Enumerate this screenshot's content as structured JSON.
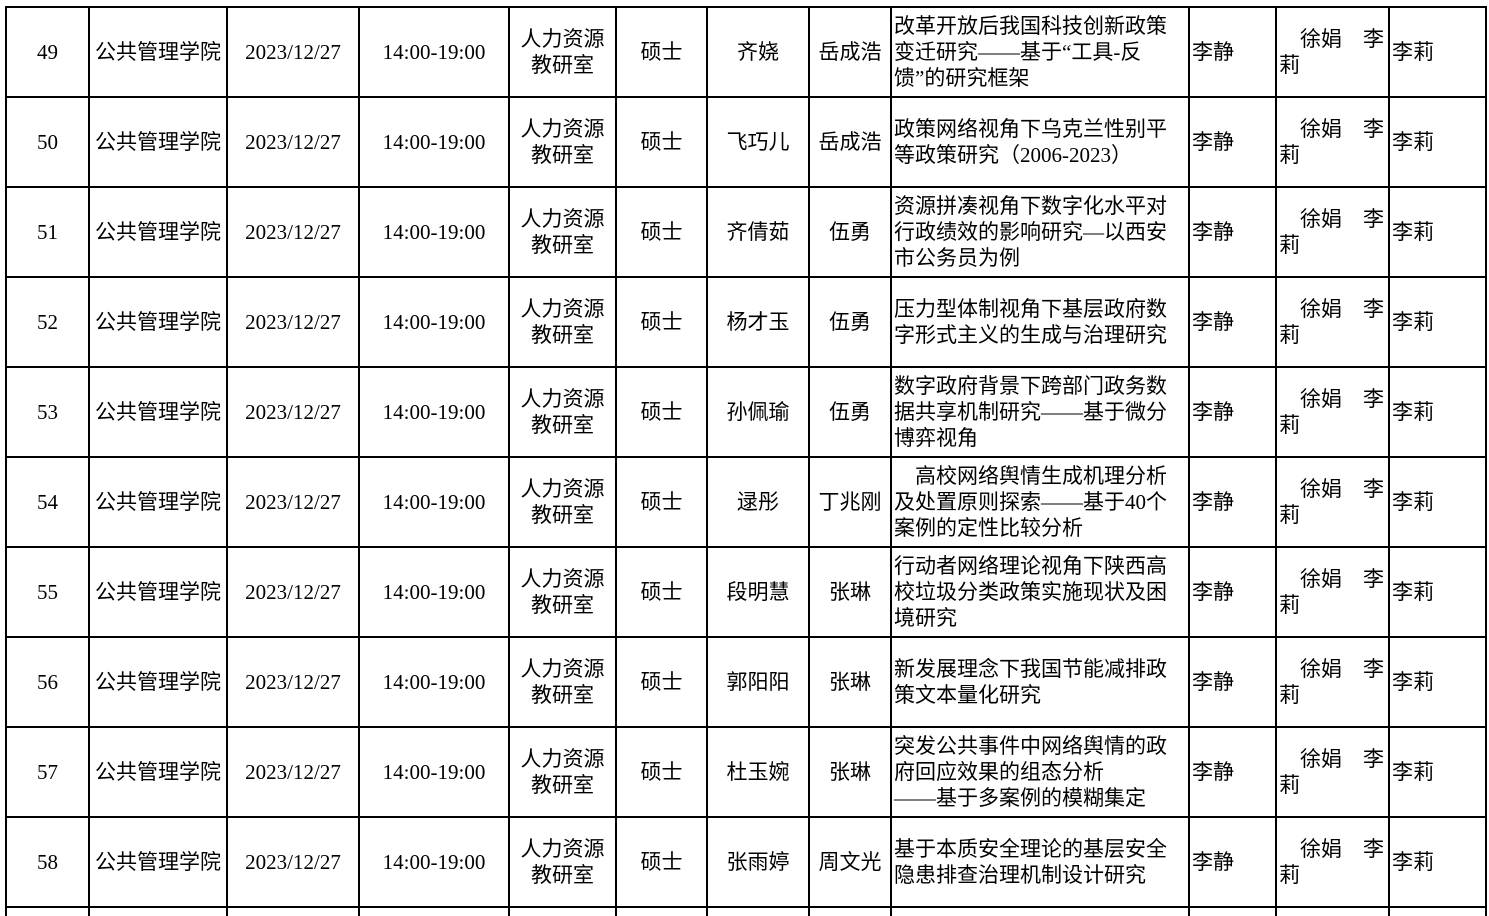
{
  "page": {
    "background_color": "#ffffff",
    "text_color": "#000000",
    "border_color": "#000000",
    "description_language": "zh-CN"
  },
  "table": {
    "rows": [
      {
        "no": "49",
        "college": "公共管理学院",
        "date": "2023/12/27",
        "time": "14:00-19:00",
        "office": "人力资源教研室",
        "degree": "硕士",
        "student": "齐娆",
        "supervisor": "岳成浩",
        "title": "改革开放后我国科技创新政策变迁研究——基于“工具-反馈”的研究框架",
        "member1": "李静",
        "member2": "　徐娟　李\n莉",
        "member3": "李莉"
      },
      {
        "no": "50",
        "college": "公共管理学院",
        "date": "2023/12/27",
        "time": "14:00-19:00",
        "office": "人力资源教研室",
        "degree": "硕士",
        "student": "飞巧儿",
        "supervisor": "岳成浩",
        "title": "政策网络视角下乌克兰性别平等政策研究（2006-2023）",
        "member1": "李静",
        "member2": "　徐娟　李\n莉",
        "member3": "李莉"
      },
      {
        "no": "51",
        "college": "公共管理学院",
        "date": "2023/12/27",
        "time": "14:00-19:00",
        "office": "人力资源教研室",
        "degree": "硕士",
        "student": "齐倩茹",
        "supervisor": "伍勇",
        "title": "资源拼凑视角下数字化水平对行政绩效的影响研究—以西安市公务员为例",
        "member1": "李静",
        "member2": "　徐娟　李\n莉",
        "member3": "李莉"
      },
      {
        "no": "52",
        "college": "公共管理学院",
        "date": "2023/12/27",
        "time": "14:00-19:00",
        "office": "人力资源教研室",
        "degree": "硕士",
        "student": "杨才玉",
        "supervisor": "伍勇",
        "title": "压力型体制视角下基层政府数字形式主义的生成与治理研究",
        "member1": "李静",
        "member2": "　徐娟　李\n莉",
        "member3": "李莉"
      },
      {
        "no": "53",
        "college": "公共管理学院",
        "date": "2023/12/27",
        "time": "14:00-19:00",
        "office": "人力资源教研室",
        "degree": "硕士",
        "student": "孙佩瑜",
        "supervisor": "伍勇",
        "title": "数字政府背景下跨部门政务数据共享机制研究——基于微分博弈视角",
        "member1": "李静",
        "member2": "　徐娟　李\n莉",
        "member3": "李莉"
      },
      {
        "no": "54",
        "college": "公共管理学院",
        "date": "2023/12/27",
        "time": "14:00-19:00",
        "office": "人力资源教研室",
        "degree": "硕士",
        "student": "逯彤",
        "supervisor": "丁兆刚",
        "title": "　高校网络舆情生成机理分析及处置原则探索——基于40个案例的定性比较分析",
        "member1": "李静",
        "member2": "　徐娟　李\n莉",
        "member3": "李莉"
      },
      {
        "no": "55",
        "college": "公共管理学院",
        "date": "2023/12/27",
        "time": "14:00-19:00",
        "office": "人力资源教研室",
        "degree": "硕士",
        "student": "段明慧",
        "supervisor": "张琳",
        "title": "行动者网络理论视角下陕西高校垃圾分类政策实施现状及困境研究",
        "member1": "李静",
        "member2": "　徐娟　李\n莉",
        "member3": "李莉"
      },
      {
        "no": "56",
        "college": "公共管理学院",
        "date": "2023/12/27",
        "time": "14:00-19:00",
        "office": "人力资源教研室",
        "degree": "硕士",
        "student": "郭阳阳",
        "supervisor": "张琳",
        "title": "新发展理念下我国节能减排政策文本量化研究",
        "member1": "李静",
        "member2": "　徐娟　李\n莉",
        "member3": "李莉"
      },
      {
        "no": "57",
        "college": "公共管理学院",
        "date": "2023/12/27",
        "time": "14:00-19:00",
        "office": "人力资源教研室",
        "degree": "硕士",
        "student": "杜玉婉",
        "supervisor": "张琳",
        "title": "突发公共事件中网络舆情的政府回应效果的组态分析\n——基于多案例的模糊集定",
        "member1": "李静",
        "member2": "　徐娟　李\n莉",
        "member3": "李莉"
      },
      {
        "no": "58",
        "college": "公共管理学院",
        "date": "2023/12/27",
        "time": "14:00-19:00",
        "office": "人力资源教研室",
        "degree": "硕士",
        "student": "张雨婷",
        "supervisor": "周文光",
        "title": "基于本质安全理论的基层安全隐患排查治理机制设计研究",
        "member1": "李静",
        "member2": "　徐娟　李\n莉",
        "member3": "李莉"
      }
    ]
  }
}
